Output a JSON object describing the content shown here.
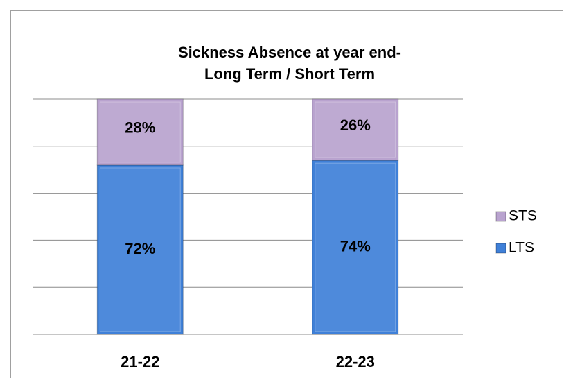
{
  "chart_data": {
    "type": "stacked_bar",
    "title": [
      "Sickness Absence at year end-",
      "Long Term / Short Term"
    ],
    "categories": [
      "21-22",
      "22-23"
    ],
    "series": [
      {
        "name": "LTS",
        "color": "#3f80d8",
        "values": [
          72,
          74
        ],
        "value_labels": [
          "72%",
          "74%"
        ]
      },
      {
        "name": "STS",
        "color": "#b9a3cf",
        "values": [
          28,
          26
        ],
        "value_labels": [
          "28%",
          "26%"
        ]
      }
    ],
    "ylim": [
      0,
      100
    ],
    "yticks": [
      0,
      20,
      40,
      60,
      80,
      100
    ],
    "grid": true,
    "legend": "right"
  }
}
